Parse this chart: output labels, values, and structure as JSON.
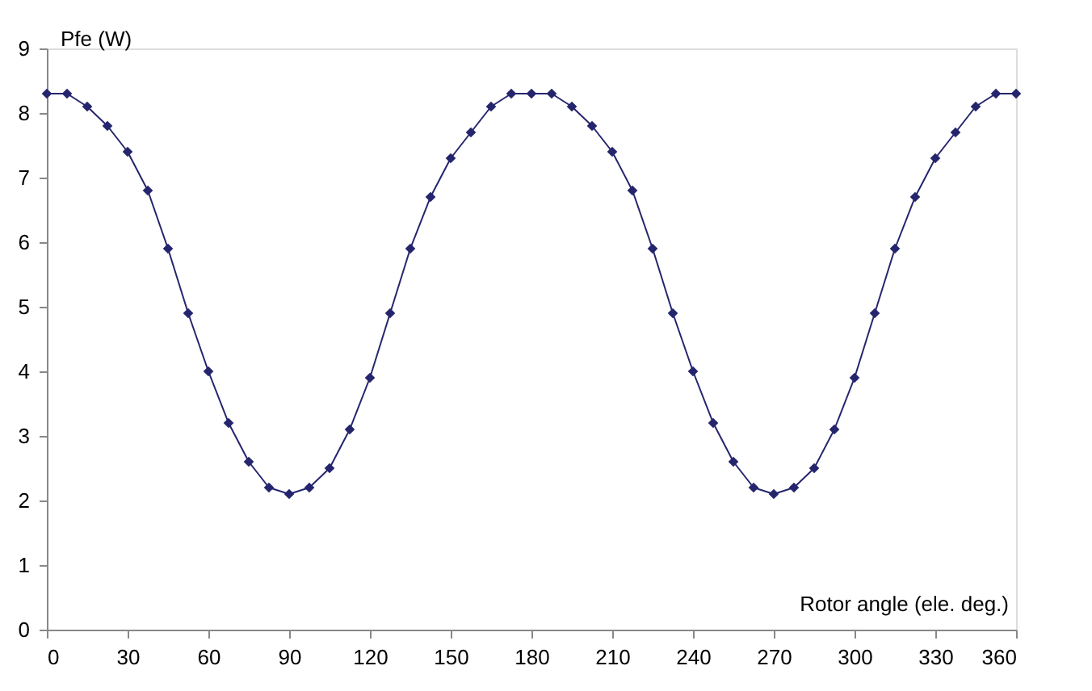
{
  "chart_data": {
    "type": "line",
    "xlabel": "Rotor angle (ele. deg.)",
    "ylabel": "Pfe (W)",
    "x": [
      0,
      7.5,
      15,
      22.5,
      30,
      37.5,
      45,
      52.5,
      60,
      67.5,
      75,
      82.5,
      90,
      97.5,
      105,
      112.5,
      120,
      127.5,
      135,
      142.5,
      150,
      157.5,
      165,
      172.5,
      180,
      187.5,
      195,
      202.5,
      210,
      217.5,
      225,
      232.5,
      240,
      247.5,
      255,
      262.5,
      270,
      277.5,
      285,
      292.5,
      300,
      307.5,
      315,
      322.5,
      330,
      337.5,
      345,
      352.5,
      360
    ],
    "series": [
      {
        "color": "#25256e",
        "values": [
          8.3,
          8.3,
          8.1,
          7.8,
          7.4,
          6.8,
          5.9,
          4.9,
          4.0,
          3.2,
          2.6,
          2.2,
          2.1,
          2.2,
          2.5,
          3.1,
          3.9,
          4.9,
          5.9,
          6.7,
          7.3,
          7.7,
          8.1,
          8.3,
          8.3,
          8.3,
          8.1,
          7.8,
          7.4,
          6.8,
          5.9,
          4.9,
          4.0,
          3.2,
          2.6,
          2.2,
          2.1,
          2.2,
          2.5,
          3.1,
          3.9,
          4.9,
          5.9,
          6.7,
          7.3,
          7.7,
          8.1,
          8.3,
          8.3
        ]
      }
    ],
    "xlim": [
      0,
      360
    ],
    "xticks": [
      0,
      30,
      60,
      90,
      120,
      150,
      180,
      210,
      240,
      270,
      300,
      330,
      360
    ],
    "ylim": [
      0,
      9
    ],
    "yticks": [
      0,
      1,
      2,
      3,
      4,
      5,
      6,
      7,
      8,
      9
    ],
    "grid": false,
    "marker": "diamond",
    "line_style": "solid"
  }
}
